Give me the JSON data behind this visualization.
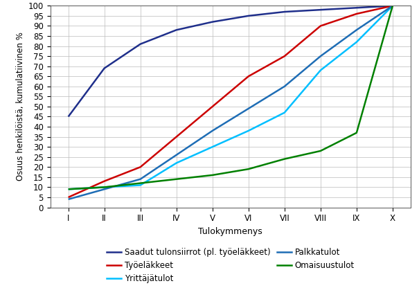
{
  "x_labels": [
    "I",
    "II",
    "III",
    "IV",
    "V",
    "VI",
    "VII",
    "VIII",
    "IX",
    "X"
  ],
  "x_values": [
    1,
    2,
    3,
    4,
    5,
    6,
    7,
    8,
    9,
    10
  ],
  "series": [
    {
      "name": "Saadut tulonsiirrot (pl. työeläkkeet)",
      "color": "#1F2F8B",
      "values": [
        45,
        69,
        81,
        88,
        92,
        95,
        97,
        98,
        99,
        100
      ]
    },
    {
      "name": "Työeläkkeet",
      "color": "#CC0000",
      "values": [
        5,
        13,
        20,
        35,
        50,
        65,
        75,
        90,
        96,
        100
      ]
    },
    {
      "name": "Yrittäjätulot",
      "color": "#00BFFF",
      "values": [
        9,
        10,
        11,
        22,
        30,
        38,
        47,
        68,
        82,
        100
      ]
    },
    {
      "name": "Palkkatulot",
      "color": "#1E6DB5",
      "values": [
        4,
        9,
        14,
        26,
        38,
        49,
        60,
        75,
        88,
        100
      ]
    },
    {
      "name": "Omaisuustulot",
      "color": "#008000",
      "values": [
        9,
        10,
        12,
        14,
        16,
        19,
        24,
        28,
        37,
        100
      ]
    }
  ],
  "ylabel": "Osuus henkilöistä, kumulatiivinen %",
  "xlabel": "Tulokymmenys",
  "ylim": [
    0,
    100
  ],
  "yticks": [
    0,
    5,
    10,
    15,
    20,
    25,
    30,
    35,
    40,
    45,
    50,
    55,
    60,
    65,
    70,
    75,
    80,
    85,
    90,
    95,
    100
  ],
  "legend_order": [
    [
      "Saadut tulonsiirrot (pl. työeläkkeet)",
      "Työeläkkeet"
    ],
    [
      "Yrittäjätulot",
      "Palkkatulot"
    ],
    [
      "Omaisuustulot"
    ]
  ],
  "background_color": "#FFFFFF",
  "grid_color": "#BBBBBB",
  "linewidth": 1.8
}
